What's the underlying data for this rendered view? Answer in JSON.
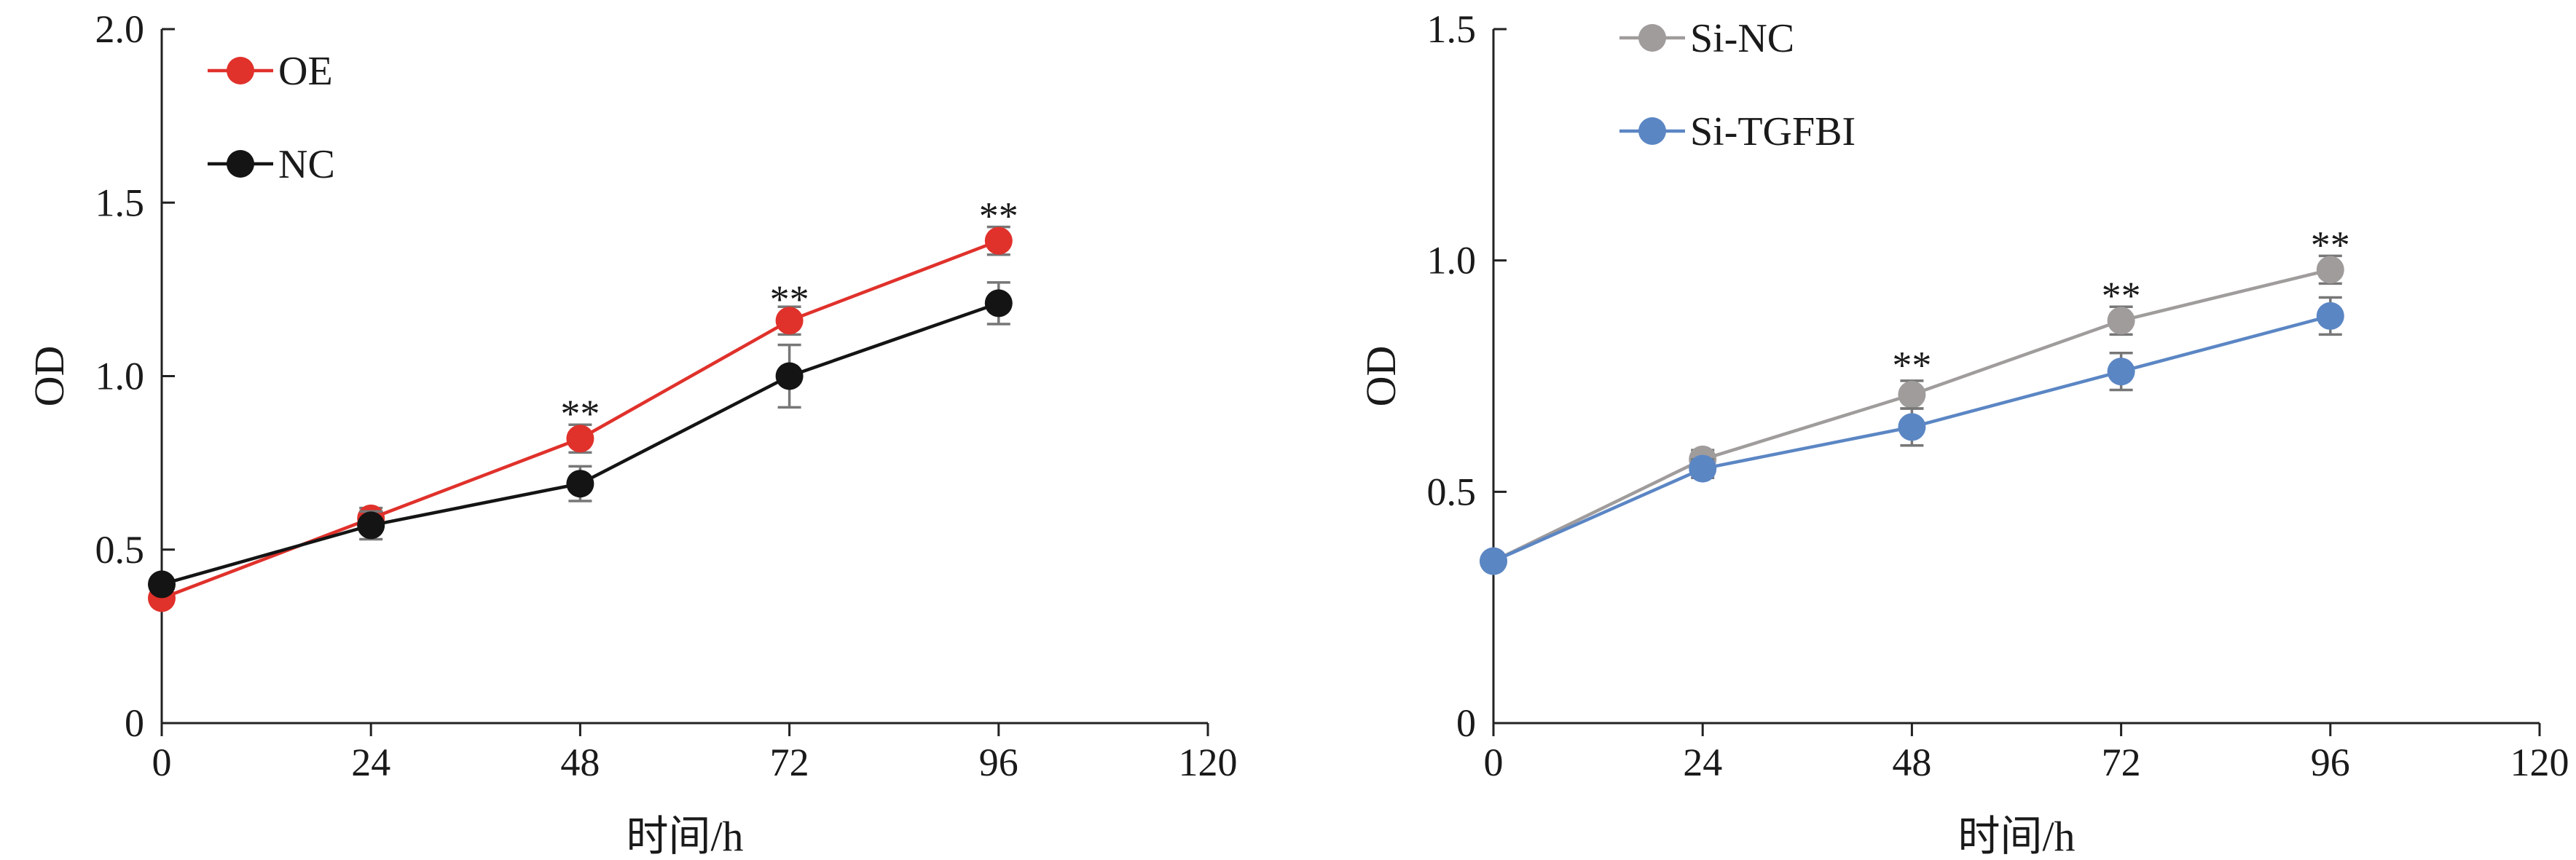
{
  "chart_data": [
    {
      "type": "line",
      "xlabel": "时间/h",
      "ylabel": "OD",
      "xlim": [
        0,
        120
      ],
      "ylim": [
        0,
        2.0
      ],
      "x_ticks": [
        0,
        24,
        48,
        72,
        96,
        120
      ],
      "y_ticks": [
        0,
        0.5,
        1.0,
        1.5,
        2.0
      ],
      "y_tick_labels": [
        "0",
        "0.5",
        "1.0",
        "1.5",
        "2.0"
      ],
      "x": [
        0,
        24,
        48,
        72,
        96
      ],
      "grid": false,
      "legend": "top-left",
      "series": [
        {
          "name": "OE",
          "color": "#e0312b",
          "values": [
            0.36,
            0.59,
            0.82,
            1.16,
            1.39
          ],
          "errors": [
            0.02,
            0.03,
            0.04,
            0.04,
            0.04
          ]
        },
        {
          "name": "NC",
          "color": "#141414",
          "values": [
            0.4,
            0.57,
            0.69,
            1.0,
            1.21
          ],
          "errors": [
            0.02,
            0.04,
            0.05,
            0.09,
            0.06
          ]
        }
      ],
      "annotations": [
        {
          "x": 48,
          "y": 0.9,
          "text": "**"
        },
        {
          "x": 72,
          "y": 1.23,
          "text": "**"
        },
        {
          "x": 96,
          "y": 1.47,
          "text": "**"
        }
      ]
    },
    {
      "type": "line",
      "xlabel": "时间/h",
      "ylabel": "OD",
      "xlim": [
        0,
        120
      ],
      "ylim": [
        0,
        1.5
      ],
      "x_ticks": [
        0,
        24,
        48,
        72,
        96,
        120
      ],
      "y_ticks": [
        0,
        0.5,
        1.0,
        1.5
      ],
      "y_tick_labels": [
        "0",
        "0.5",
        "1.0",
        "1.5"
      ],
      "x": [
        0,
        24,
        48,
        72,
        96
      ],
      "grid": false,
      "legend": "top-left",
      "series": [
        {
          "name": "Si-NC",
          "color": "#a09c9c",
          "values": [
            0.35,
            0.57,
            0.71,
            0.87,
            0.98
          ],
          "errors": [
            0.01,
            0.02,
            0.03,
            0.03,
            0.03
          ]
        },
        {
          "name": "Si-TGFBI",
          "color": "#5b86c4",
          "values": [
            0.35,
            0.55,
            0.64,
            0.76,
            0.88
          ],
          "errors": [
            0.01,
            0.02,
            0.04,
            0.04,
            0.04
          ]
        }
      ],
      "annotations": [
        {
          "x": 48,
          "y": 0.78,
          "text": "**"
        },
        {
          "x": 72,
          "y": 0.93,
          "text": "**"
        },
        {
          "x": 96,
          "y": 1.04,
          "text": "**"
        }
      ]
    }
  ]
}
